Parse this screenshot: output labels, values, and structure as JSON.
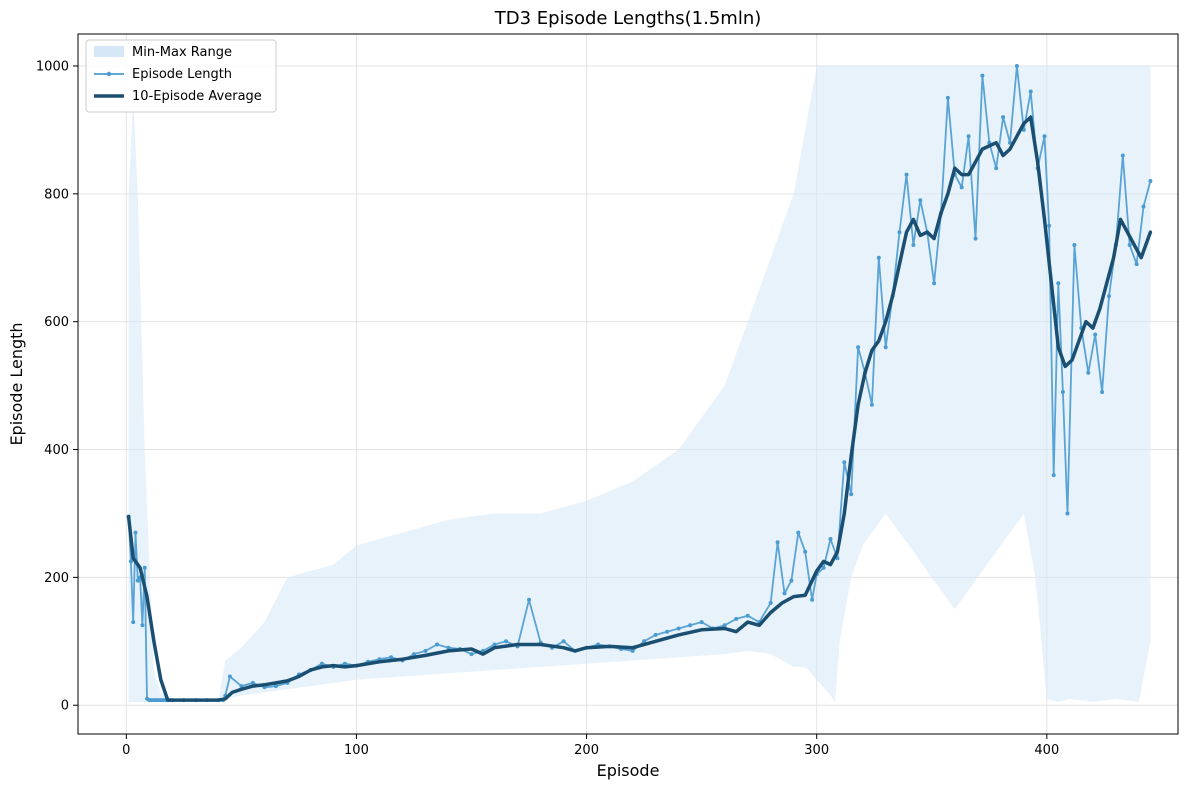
{
  "chart_data": {
    "type": "line",
    "title": "TD3 Episode Lengths(1.5mln)",
    "xlabel": "Episode",
    "ylabel": "Episode Length",
    "xlim": [
      -21,
      457
    ],
    "ylim": [
      -45,
      1050
    ],
    "xticks": [
      0,
      100,
      200,
      300,
      400
    ],
    "yticks": [
      0,
      200,
      400,
      600,
      800,
      1000
    ],
    "grid": true,
    "legend_position": "top-left",
    "colors": {
      "range": "#d6e8f7",
      "episode": "#4a9bd0",
      "average": "#1b4f72"
    },
    "legend": [
      "Min-Max Range",
      "Episode Length",
      "10-Episode Average"
    ],
    "series": [
      {
        "name": "Min-Max Range",
        "x": [
          1,
          3,
          5,
          8,
          12,
          15,
          20,
          30,
          40,
          43,
          50,
          60,
          70,
          80,
          90,
          100,
          120,
          140,
          160,
          180,
          200,
          220,
          240,
          260,
          270,
          280,
          290,
          295,
          300,
          305,
          308,
          310,
          315,
          320,
          330,
          340,
          350,
          360,
          370,
          380,
          390,
          395,
          400,
          405,
          410,
          420,
          430,
          440,
          445
        ],
        "low": [
          5,
          5,
          5,
          5,
          5,
          7,
          7,
          7,
          7,
          10,
          15,
          20,
          25,
          30,
          35,
          40,
          45,
          50,
          55,
          60,
          65,
          70,
          75,
          80,
          85,
          80,
          60,
          60,
          40,
          20,
          5,
          100,
          200,
          250,
          300,
          250,
          200,
          150,
          200,
          250,
          300,
          200,
          10,
          5,
          10,
          5,
          10,
          5,
          100
        ],
        "high": [
          800,
          950,
          800,
          400,
          50,
          20,
          8,
          8,
          8,
          70,
          90,
          130,
          200,
          210,
          220,
          250,
          270,
          290,
          300,
          300,
          320,
          350,
          400,
          500,
          600,
          700,
          800,
          900,
          1000,
          1000,
          1000,
          1000,
          1000,
          1000,
          1000,
          1000,
          1000,
          1000,
          1000,
          1000,
          1000,
          1000,
          1000,
          1000,
          1000,
          1000,
          1000,
          1000,
          1000
        ]
      },
      {
        "name": "Episode Length",
        "x": [
          1,
          2,
          3,
          4,
          5,
          6,
          7,
          8,
          9,
          10,
          11,
          12,
          13,
          14,
          15,
          16,
          17,
          18,
          19,
          20,
          25,
          30,
          35,
          40,
          42,
          43,
          45,
          50,
          55,
          60,
          65,
          70,
          75,
          80,
          85,
          90,
          95,
          100,
          105,
          110,
          115,
          120,
          125,
          130,
          135,
          140,
          145,
          150,
          155,
          160,
          165,
          170,
          175,
          180,
          185,
          190,
          195,
          200,
          205,
          210,
          215,
          220,
          225,
          230,
          235,
          240,
          245,
          250,
          255,
          260,
          265,
          270,
          275,
          280,
          283,
          286,
          289,
          292,
          295,
          298,
          300,
          303,
          306,
          309,
          312,
          315,
          318,
          321,
          324,
          327,
          330,
          333,
          336,
          339,
          342,
          345,
          348,
          351,
          354,
          357,
          360,
          363,
          366,
          369,
          372,
          375,
          378,
          381,
          384,
          387,
          390,
          393,
          396,
          399,
          401,
          403,
          405,
          407,
          409,
          412,
          415,
          418,
          421,
          424,
          427,
          430,
          433,
          436,
          439,
          442,
          445
        ],
        "values": [
          295,
          225,
          130,
          270,
          195,
          200,
          125,
          215,
          10,
          8,
          8,
          8,
          8,
          8,
          8,
          8,
          8,
          8,
          8,
          8,
          8,
          8,
          8,
          8,
          8,
          15,
          45,
          30,
          35,
          28,
          30,
          35,
          48,
          55,
          65,
          60,
          65,
          62,
          68,
          72,
          75,
          70,
          80,
          85,
          95,
          90,
          88,
          80,
          85,
          95,
          100,
          92,
          165,
          98,
          90,
          100,
          85,
          90,
          95,
          92,
          88,
          85,
          100,
          110,
          115,
          120,
          125,
          130,
          120,
          125,
          135,
          140,
          130,
          160,
          255,
          175,
          195,
          270,
          240,
          165,
          205,
          215,
          260,
          230,
          380,
          330,
          560,
          520,
          470,
          700,
          560,
          640,
          740,
          830,
          720,
          790,
          740,
          660,
          770,
          950,
          830,
          810,
          890,
          730,
          985,
          880,
          840,
          920,
          880,
          1000,
          900,
          960,
          840,
          890,
          750,
          360,
          660,
          490,
          300,
          720,
          590,
          520,
          580,
          490,
          640,
          720,
          860,
          720,
          690,
          780,
          820
        ]
      },
      {
        "name": "10-Episode Average",
        "x": [
          1,
          3,
          6,
          9,
          12,
          15,
          18,
          20,
          25,
          30,
          35,
          40,
          43,
          46,
          50,
          55,
          60,
          65,
          70,
          75,
          80,
          85,
          90,
          95,
          100,
          110,
          120,
          130,
          140,
          150,
          155,
          160,
          170,
          180,
          190,
          195,
          200,
          210,
          220,
          230,
          240,
          250,
          260,
          265,
          270,
          275,
          280,
          285,
          290,
          295,
          300,
          303,
          306,
          309,
          312,
          315,
          318,
          321,
          324,
          327,
          330,
          333,
          336,
          339,
          342,
          345,
          348,
          351,
          354,
          357,
          360,
          363,
          366,
          369,
          372,
          375,
          378,
          381,
          384,
          387,
          390,
          393,
          396,
          399,
          402,
          405,
          408,
          411,
          414,
          417,
          420,
          423,
          426,
          429,
          432,
          435,
          438,
          441,
          445
        ],
        "values": [
          295,
          230,
          215,
          170,
          100,
          40,
          8,
          8,
          8,
          8,
          8,
          8,
          10,
          20,
          25,
          30,
          32,
          35,
          38,
          45,
          55,
          60,
          62,
          60,
          62,
          68,
          72,
          78,
          85,
          88,
          80,
          90,
          95,
          95,
          90,
          85,
          90,
          92,
          90,
          100,
          110,
          118,
          120,
          115,
          130,
          125,
          145,
          160,
          170,
          172,
          210,
          225,
          220,
          240,
          300,
          390,
          470,
          520,
          555,
          570,
          600,
          640,
          690,
          740,
          760,
          735,
          740,
          730,
          770,
          800,
          840,
          830,
          830,
          850,
          870,
          875,
          880,
          860,
          870,
          890,
          910,
          920,
          850,
          760,
          660,
          560,
          530,
          540,
          570,
          600,
          590,
          620,
          660,
          700,
          760,
          740,
          720,
          700,
          740
        ]
      }
    ]
  }
}
